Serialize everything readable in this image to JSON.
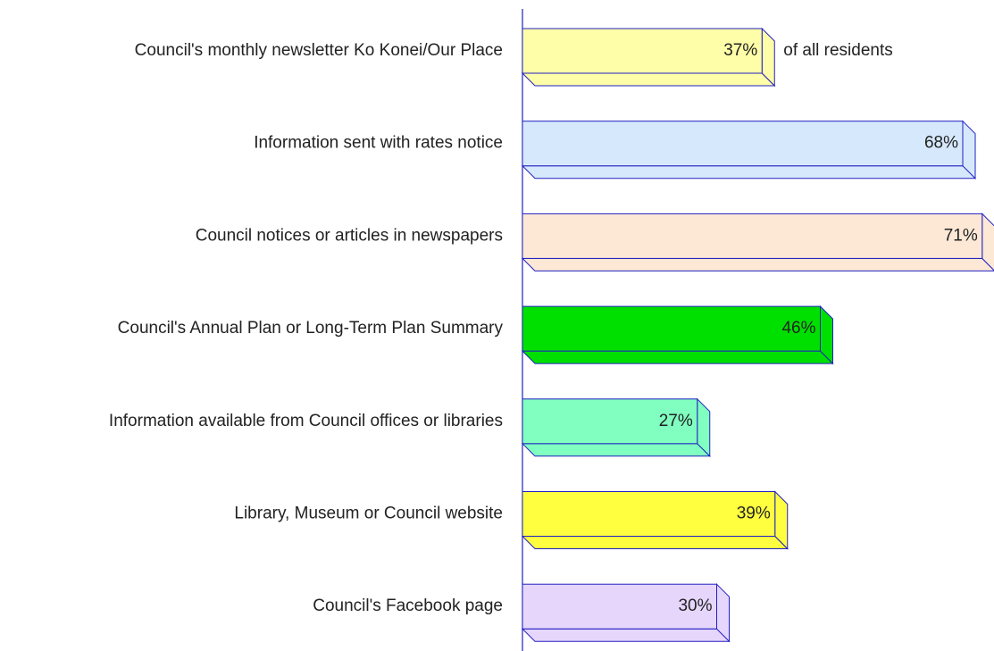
{
  "chart_data": {
    "type": "bar3d-horizontal",
    "categories": [
      "Council's monthly newsletter Ko Konei/Our Place",
      "Information sent with rates notice",
      "Council notices or articles in newspapers",
      "Council's Annual Plan or Long-Term Plan Summary",
      "Information available from Council offices or libraries",
      "Library, Museum or Council website",
      "Council's Facebook page"
    ],
    "values": [
      37,
      68,
      71,
      46,
      27,
      39,
      30
    ],
    "value_labels": [
      "37%",
      "68%",
      "71%",
      "46%",
      "27%",
      "39%",
      "30%"
    ],
    "colors": [
      "#fefea8",
      "#d6e8fc",
      "#fde8d6",
      "#00e000",
      "#80ffc0",
      "#ffff40",
      "#e6d6fc"
    ],
    "annotation": "of all residents"
  }
}
